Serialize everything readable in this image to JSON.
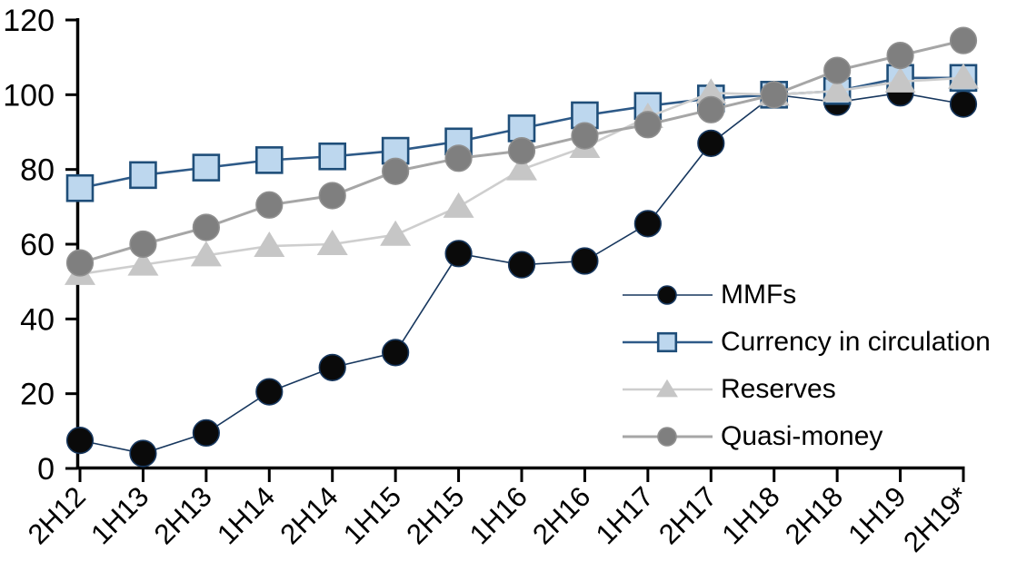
{
  "chart_data": {
    "type": "line",
    "title": "",
    "xlabel": "",
    "ylabel": "",
    "categories": [
      "2H12",
      "1H13",
      "2H13",
      "1H14",
      "2H14",
      "1H15",
      "2H15",
      "1H16",
      "2H16",
      "1H17",
      "2H17",
      "1H18",
      "2H18",
      "1H19",
      "2H19*"
    ],
    "yticks": [
      0,
      20,
      40,
      60,
      80,
      100,
      120
    ],
    "ylim": [
      0,
      120
    ],
    "grid": false,
    "legend_position": "inside-right",
    "axis_color": "#000000",
    "background_color": "#ffffff",
    "series": [
      {
        "name": "MMFs",
        "marker": "circle",
        "marker_fill": "#0a0a0a",
        "marker_stroke": "#17375e",
        "line_color": "#17375e",
        "line_width": 1.6,
        "values": [
          7.5,
          4,
          9.5,
          20.5,
          27,
          31,
          57.5,
          54.5,
          55.5,
          65.5,
          87,
          100,
          98,
          100.5,
          97.5
        ]
      },
      {
        "name": "Currency in circulation",
        "marker": "square",
        "marker_fill": "#bdd7ee",
        "marker_stroke": "#1f4e79",
        "line_color": "#2e5a88",
        "line_width": 2.6,
        "values": [
          75,
          78.5,
          80.5,
          82.5,
          83.5,
          85,
          87.5,
          91,
          94.5,
          97,
          99,
          100,
          101,
          104.5,
          104.5
        ]
      },
      {
        "name": "Reserves",
        "marker": "triangle",
        "marker_fill": "#c6c6c6",
        "marker_stroke": "#c6c6c6",
        "line_color": "#cecece",
        "line_width": 2.6,
        "values": [
          52,
          54.5,
          57,
          59.5,
          60,
          62.5,
          70,
          80,
          86,
          94,
          100.5,
          100,
          101,
          103.5,
          104.5
        ]
      },
      {
        "name": "Quasi-money",
        "marker": "circle",
        "marker_fill": "#7f7f7f",
        "marker_stroke": "#8f8f8f",
        "line_color": "#a6a6a6",
        "line_width": 3,
        "values": [
          55,
          60,
          64.5,
          70.5,
          73,
          79.5,
          83,
          85,
          89,
          92,
          96,
          100,
          106.5,
          110.5,
          114.5
        ]
      }
    ]
  }
}
